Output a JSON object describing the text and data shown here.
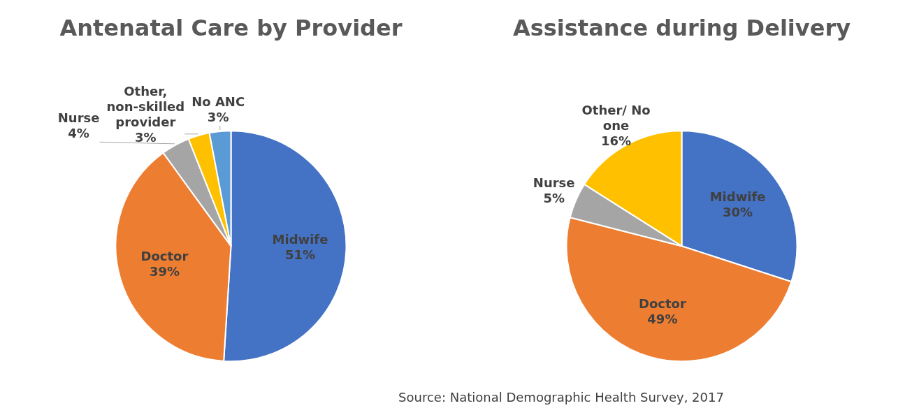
{
  "chart_data": [
    {
      "type": "pie",
      "title": "Antenatal Care by Provider",
      "categories": [
        "Midwife",
        "Doctor",
        "Nurse",
        "Other, non-skilled provider",
        "No ANC"
      ],
      "values": [
        51,
        39,
        4,
        3,
        3
      ],
      "colors": [
        "#4472c4",
        "#ed7d31",
        "#a5a5a5",
        "#ffc000",
        "#5b9bd5"
      ],
      "value_labels": [
        "51%",
        "39%",
        "4%",
        "3%",
        "3%"
      ]
    },
    {
      "type": "pie",
      "title": "Assistance during Delivery",
      "categories": [
        "Midwife",
        "Doctor",
        "Nurse",
        "Other/ No one"
      ],
      "values": [
        30,
        49,
        5,
        16
      ],
      "colors": [
        "#4472c4",
        "#ed7d31",
        "#a5a5a5",
        "#ffc000"
      ],
      "value_labels": [
        "30%",
        "49%",
        "5%",
        "16%"
      ],
      "annotations": [
        "Source: National Demographic Health Survey, 2017"
      ]
    }
  ]
}
